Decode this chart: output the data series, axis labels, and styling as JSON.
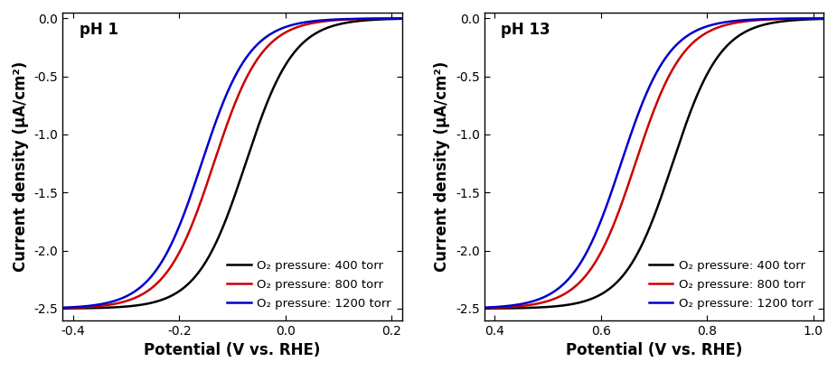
{
  "panel1": {
    "label": "pH 1",
    "xlim": [
      -0.42,
      0.22
    ],
    "xticks": [
      -0.4,
      -0.2,
      0.0,
      0.2
    ],
    "ylim": [
      -2.6,
      0.05
    ],
    "yticks": [
      0.0,
      -0.5,
      -1.0,
      -1.5,
      -2.0,
      -2.5
    ],
    "curves": [
      {
        "color": "#000000",
        "label": "O₂ pressure: 400 torr",
        "onset": 0.03,
        "k": 22.0,
        "shift": -0.075,
        "ilim": -2.5
      },
      {
        "color": "#cc0000",
        "label": "O₂ pressure: 800 torr",
        "onset": 0.03,
        "k": 22.0,
        "shift": -0.135,
        "ilim": -2.5
      },
      {
        "color": "#0000cc",
        "label": "O₂ pressure: 1200 torr",
        "onset": 0.03,
        "k": 22.0,
        "shift": -0.158,
        "ilim": -2.5
      }
    ]
  },
  "panel2": {
    "label": "pH 13",
    "xlim": [
      0.38,
      1.02
    ],
    "xticks": [
      0.4,
      0.6,
      0.8,
      1.0
    ],
    "ylim": [
      -2.6,
      0.05
    ],
    "yticks": [
      0.0,
      -0.5,
      -1.0,
      -1.5,
      -2.0,
      -2.5
    ],
    "curves": [
      {
        "color": "#000000",
        "label": "O₂ pressure: 400 torr",
        "onset": 0.83,
        "k": 22.0,
        "shift": 0.735,
        "ilim": -2.5
      },
      {
        "color": "#cc0000",
        "label": "O₂ pressure: 800 torr",
        "onset": 0.83,
        "k": 22.0,
        "shift": 0.665,
        "ilim": -2.5
      },
      {
        "color": "#0000cc",
        "label": "O₂ pressure: 1200 torr",
        "onset": 0.83,
        "k": 22.0,
        "shift": 0.638,
        "ilim": -2.5
      }
    ]
  },
  "ylabel": "Current density (μA/cm²)",
  "xlabel": "Potential (V vs. RHE)",
  "linewidth": 1.8,
  "legend_fontsize": 9.5,
  "axis_label_fontsize": 12,
  "tick_fontsize": 10,
  "panel_label_fontsize": 12
}
